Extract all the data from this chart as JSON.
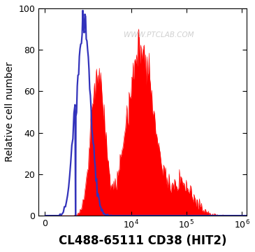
{
  "xlabel": "CL488-65111 CD38 (HIT2)",
  "ylabel": "Relative cell number",
  "watermark": "WWW.PTCLAB.COM",
  "ylim": [
    0,
    100
  ],
  "yticks": [
    0,
    20,
    40,
    60,
    80,
    100
  ],
  "background_color": "#ffffff",
  "blue_color": "#3333bb",
  "red_color": "#ff0000",
  "xlabel_fontsize": 12,
  "ylabel_fontsize": 10,
  "tick_fontsize": 9,
  "linthresh": 1000,
  "linscale": 0.5,
  "xlim_left": -200,
  "xlim_right": 1200000
}
